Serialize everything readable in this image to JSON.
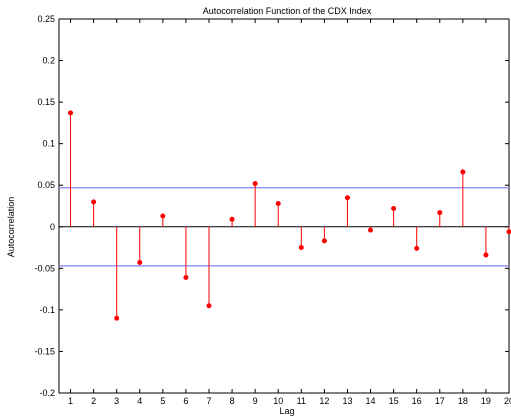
{
  "chart_data": {
    "type": "stem",
    "title": "Autocorrelation Function of the CDX Index",
    "xlabel": "Lag",
    "ylabel": "Autocorrelation",
    "xlim": [
      0.5,
      20
    ],
    "ylim": [
      -0.2,
      0.25
    ],
    "xticks": [
      1,
      2,
      3,
      4,
      5,
      6,
      7,
      8,
      9,
      10,
      11,
      12,
      13,
      14,
      15,
      16,
      17,
      18,
      19,
      20
    ],
    "yticks": [
      -0.2,
      -0.15,
      -0.1,
      -0.05,
      0,
      0.05,
      0.1,
      0.15,
      0.2,
      0.25
    ],
    "ytick_labels": [
      "-0.2",
      "-0.15",
      "-0.1",
      "-0.05",
      "0",
      "0.05",
      "0.1",
      "0.15",
      "0.2",
      "0.25"
    ],
    "grid": false,
    "series": [
      {
        "x": [
          1,
          2,
          3,
          4,
          5,
          6,
          7,
          8,
          9,
          10,
          11,
          12,
          13,
          14,
          15,
          16,
          17,
          18,
          19,
          20
        ],
        "values": [
          0.137,
          0.03,
          -0.11,
          -0.043,
          0.013,
          -0.061,
          -0.095,
          0.009,
          0.052,
          0.028,
          -0.025,
          -0.017,
          0.035,
          -0.004,
          0.022,
          -0.026,
          0.017,
          0.066,
          -0.034,
          -0.006
        ],
        "color": "#ff0000"
      }
    ],
    "confidence_bounds": {
      "upper": 0.047,
      "lower": -0.047,
      "color": "#8080ff"
    },
    "zero_line_color": "#000000"
  }
}
